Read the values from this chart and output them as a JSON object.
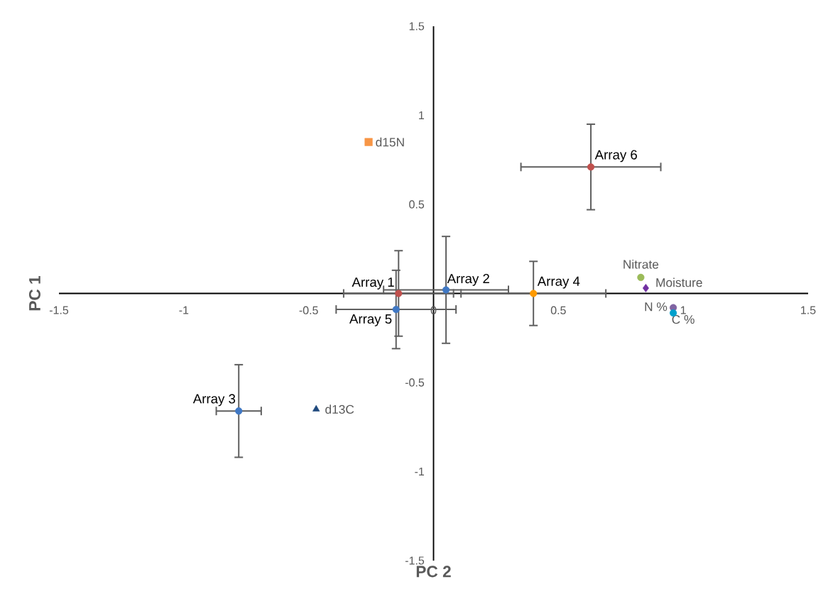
{
  "chart_data": {
    "type": "scatter",
    "xlabel": "PC 2",
    "ylabel": "PC 1",
    "xlim": [
      -1.5,
      1.5
    ],
    "ylim": [
      -1.5,
      1.5
    ],
    "xticks": [
      -1.5,
      -1,
      -0.5,
      0,
      0.5,
      1,
      1.5
    ],
    "yticks": [
      -1.5,
      -1,
      -0.5,
      0.5,
      1,
      1.5
    ],
    "series": [
      {
        "name": "Array 1",
        "color": "#c0504d",
        "marker": "circle",
        "x": [
          -0.14
        ],
        "values": [
          0
        ],
        "xerrors": [
          0.22
        ],
        "errors": [
          0.24
        ]
      },
      {
        "name": "Array 2",
        "color": "#4078c4",
        "marker": "circle",
        "x": [
          0.05
        ],
        "values": [
          0.02
        ],
        "xerrors": [
          0.25
        ],
        "errors": [
          0.3
        ]
      },
      {
        "name": "Array 3",
        "color": "#4078c4",
        "marker": "circle",
        "x": [
          -0.78
        ],
        "values": [
          -0.66
        ],
        "xerrors": [
          0.09
        ],
        "errors": [
          0.26
        ]
      },
      {
        "name": "Array 4",
        "color": "#ff9a00",
        "marker": "circle",
        "x": [
          0.4
        ],
        "values": [
          0
        ],
        "xerrors": [
          0.29
        ],
        "errors": [
          0.18
        ]
      },
      {
        "name": "Array 5",
        "color": "#4078c4",
        "marker": "circle",
        "x": [
          -0.15
        ],
        "values": [
          -0.09
        ],
        "xerrors": [
          0.24
        ],
        "errors": [
          0.22
        ]
      },
      {
        "name": "Array 6",
        "color": "#c0504d",
        "marker": "circle",
        "x": [
          0.63
        ],
        "values": [
          0.71
        ],
        "xerrors": [
          0.28
        ],
        "errors": [
          0.24
        ]
      },
      {
        "name": "d15N",
        "color": "#f79646",
        "marker": "square",
        "x": [
          -0.26
        ],
        "values": [
          0.85
        ]
      },
      {
        "name": "d13C",
        "color": "#1f497d",
        "marker": "triangle",
        "x": [
          -0.47
        ],
        "values": [
          -0.65
        ]
      },
      {
        "name": "Nitrate",
        "color": "#9bbb59",
        "marker": "circle",
        "x": [
          0.83
        ],
        "values": [
          0.09
        ]
      },
      {
        "name": "Moisture",
        "color": "#7030a0",
        "marker": "diamond",
        "x": [
          0.85
        ],
        "values": [
          0.03
        ]
      },
      {
        "name": "N %",
        "color": "#8064a2",
        "marker": "circle",
        "x": [
          0.96
        ],
        "values": [
          -0.08
        ]
      },
      {
        "name": "C %",
        "color": "#00a0cc",
        "marker": "circle",
        "x": [
          0.96
        ],
        "values": [
          -0.11
        ]
      }
    ]
  }
}
